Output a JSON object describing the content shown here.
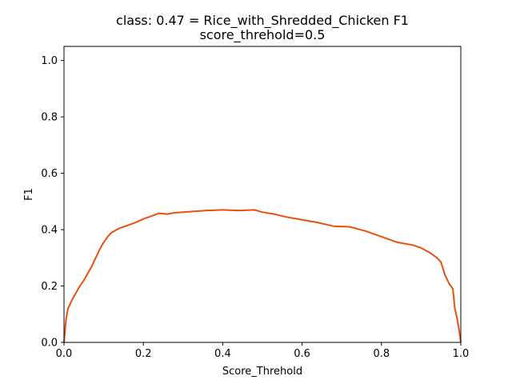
{
  "chart_data": {
    "type": "line",
    "title": "class: 0.47 = Rice_with_Shredded_Chicken F1",
    "subtitle": "score_threhold=0.5",
    "xlabel": "Score_Threhold",
    "ylabel": "F1",
    "xlim": [
      0.0,
      1.0
    ],
    "ylim": [
      0.0,
      1.05
    ],
    "x_ticks": [
      "0.0",
      "0.2",
      "0.4",
      "0.6",
      "0.8",
      "1.0"
    ],
    "y_ticks": [
      "0.0",
      "0.2",
      "0.4",
      "0.6",
      "0.8",
      "1.0"
    ],
    "grid": false,
    "legend": "none",
    "series": [
      {
        "color": "#e8500f",
        "x": [
          0.0,
          0.005,
          0.01,
          0.02,
          0.03,
          0.04,
          0.05,
          0.06,
          0.07,
          0.08,
          0.09,
          0.1,
          0.11,
          0.12,
          0.14,
          0.16,
          0.18,
          0.2,
          0.22,
          0.24,
          0.26,
          0.28,
          0.3,
          0.33,
          0.36,
          0.4,
          0.44,
          0.48,
          0.5,
          0.53,
          0.56,
          0.6,
          0.64,
          0.68,
          0.72,
          0.76,
          0.8,
          0.84,
          0.88,
          0.9,
          0.92,
          0.94,
          0.95,
          0.96,
          0.97,
          0.98,
          0.985,
          0.99,
          0.995,
          1.0
        ],
        "y": [
          0.0,
          0.08,
          0.12,
          0.15,
          0.175,
          0.2,
          0.22,
          0.245,
          0.27,
          0.3,
          0.33,
          0.355,
          0.375,
          0.39,
          0.405,
          0.415,
          0.425,
          0.438,
          0.448,
          0.458,
          0.455,
          0.46,
          0.462,
          0.465,
          0.468,
          0.47,
          0.468,
          0.47,
          0.462,
          0.455,
          0.445,
          0.435,
          0.425,
          0.412,
          0.41,
          0.395,
          0.375,
          0.355,
          0.345,
          0.335,
          0.32,
          0.3,
          0.285,
          0.24,
          0.21,
          0.19,
          0.12,
          0.09,
          0.05,
          0.0
        ]
      }
    ]
  }
}
